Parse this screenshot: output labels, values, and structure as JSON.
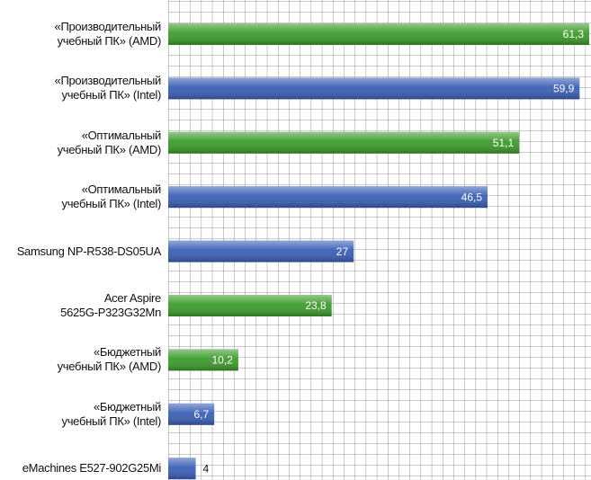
{
  "chart_data": {
    "type": "bar",
    "orientation": "horizontal",
    "categories": [
      "«Производительный\nучебный ПК» (AMD)",
      "«Производительный\nучебный ПК» (Intel)",
      "«Оптимальный\nучебный ПК» (AMD)",
      "«Оптимальный\nучебный ПК» (Intel)",
      "Samsung NP-R538-DS05UA",
      "Acer Aspire\n5625G-P323G32Mn",
      "«Бюджетный\nучебный ПК» (AMD)",
      "«Бюджетный\nучебный ПК» (Intel)",
      "eMachines E527-902G25Mi"
    ],
    "values": [
      61.3,
      59.9,
      51.1,
      46.5,
      27,
      23.8,
      10.2,
      6.7,
      4
    ],
    "value_labels": [
      "61,3",
      "59,9",
      "51,1",
      "46,5",
      "27",
      "23,8",
      "10,2",
      "6,7",
      "4"
    ],
    "colors": [
      "#3d9b2c",
      "#3a5fb5",
      "#3d9b2c",
      "#3a5fb5",
      "#3a5fb5",
      "#3d9b2c",
      "#3d9b2c",
      "#3a5fb5",
      "#3a5fb5"
    ],
    "xlim": [
      0,
      61.3
    ],
    "grid": true
  }
}
